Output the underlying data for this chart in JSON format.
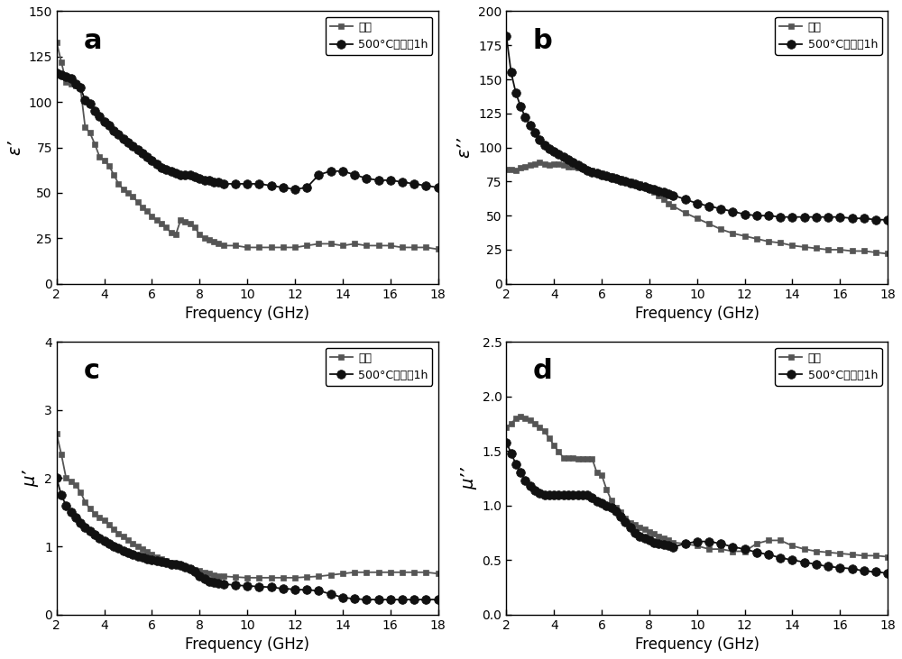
{
  "panel_labels": [
    "a",
    "b",
    "c",
    "d"
  ],
  "legend_room_temp": "室温",
  "legend_500": "500°C热处理1h",
  "xlabel": "Frequency (GHz)",
  "ylabel_a": "ε’",
  "ylabel_b": "ε’’",
  "ylabel_c": "μ’",
  "ylabel_d": "μ’’",
  "color_room": "#555555",
  "color_500": "#111111",
  "xlim": [
    2,
    18
  ],
  "ylim_a": [
    0,
    150
  ],
  "ylim_b": [
    0,
    200
  ],
  "ylim_c": [
    0,
    4
  ],
  "ylim_d": [
    0.0,
    2.5
  ],
  "xticks": [
    2,
    4,
    6,
    8,
    10,
    12,
    14,
    16,
    18
  ],
  "yticks_a": [
    0,
    25,
    50,
    75,
    100,
    125,
    150
  ],
  "yticks_b": [
    0,
    25,
    50,
    75,
    100,
    125,
    150,
    175,
    200
  ],
  "yticks_c": [
    0,
    1,
    2,
    3,
    4
  ],
  "yticks_d": [
    0.0,
    0.5,
    1.0,
    1.5,
    2.0,
    2.5
  ],
  "freq_a_room": [
    2.0,
    2.2,
    2.4,
    2.6,
    2.8,
    3.0,
    3.2,
    3.4,
    3.6,
    3.8,
    4.0,
    4.2,
    4.4,
    4.6,
    4.8,
    5.0,
    5.2,
    5.4,
    5.6,
    5.8,
    6.0,
    6.2,
    6.4,
    6.6,
    6.8,
    7.0,
    7.2,
    7.4,
    7.6,
    7.8,
    8.0,
    8.2,
    8.4,
    8.6,
    8.8,
    9.0,
    9.5,
    10.0,
    10.5,
    11.0,
    11.5,
    12.0,
    12.5,
    13.0,
    13.5,
    14.0,
    14.5,
    15.0,
    15.5,
    16.0,
    16.5,
    17.0,
    17.5,
    18.0
  ],
  "val_a_room": [
    133,
    122,
    111,
    110,
    109,
    108,
    86,
    83,
    77,
    70,
    68,
    65,
    60,
    55,
    52,
    50,
    48,
    45,
    42,
    40,
    37,
    35,
    33,
    31,
    28,
    27,
    35,
    34,
    33,
    31,
    27,
    25,
    24,
    23,
    22,
    21,
    21,
    20,
    20,
    20,
    20,
    20,
    21,
    22,
    22,
    21,
    22,
    21,
    21,
    21,
    20,
    20,
    20,
    19
  ],
  "freq_a_500": [
    2.0,
    2.2,
    2.4,
    2.6,
    2.8,
    3.0,
    3.2,
    3.4,
    3.6,
    3.8,
    4.0,
    4.2,
    4.4,
    4.6,
    4.8,
    5.0,
    5.2,
    5.4,
    5.6,
    5.8,
    6.0,
    6.2,
    6.4,
    6.6,
    6.8,
    7.0,
    7.2,
    7.4,
    7.6,
    7.8,
    8.0,
    8.2,
    8.4,
    8.6,
    8.8,
    9.0,
    9.5,
    10.0,
    10.5,
    11.0,
    11.5,
    12.0,
    12.5,
    13.0,
    13.5,
    14.0,
    14.5,
    15.0,
    15.5,
    16.0,
    16.5,
    17.0,
    17.5,
    18.0
  ],
  "val_a_500": [
    116,
    115,
    114,
    113,
    110,
    108,
    101,
    99,
    95,
    92,
    89,
    87,
    84,
    82,
    80,
    78,
    76,
    74,
    72,
    70,
    68,
    66,
    64,
    63,
    62,
    61,
    60,
    60,
    60,
    59,
    58,
    57,
    57,
    56,
    56,
    55,
    55,
    55,
    55,
    54,
    53,
    52,
    53,
    60,
    62,
    62,
    60,
    58,
    57,
    57,
    56,
    55,
    54,
    53
  ],
  "freq_b_room": [
    2.0,
    2.2,
    2.4,
    2.6,
    2.8,
    3.0,
    3.2,
    3.4,
    3.6,
    3.8,
    4.0,
    4.2,
    4.4,
    4.6,
    4.8,
    5.0,
    5.2,
    5.4,
    5.6,
    5.8,
    6.0,
    6.2,
    6.4,
    6.6,
    6.8,
    7.0,
    7.2,
    7.4,
    7.6,
    7.8,
    8.0,
    8.2,
    8.4,
    8.6,
    8.8,
    9.0,
    9.5,
    10.0,
    10.5,
    11.0,
    11.5,
    12.0,
    12.5,
    13.0,
    13.5,
    14.0,
    14.5,
    15.0,
    15.5,
    16.0,
    16.5,
    17.0,
    17.5,
    18.0
  ],
  "val_b_room": [
    84,
    84,
    83,
    85,
    86,
    87,
    88,
    89,
    88,
    87,
    88,
    88,
    87,
    86,
    86,
    85,
    85,
    84,
    83,
    82,
    81,
    80,
    79,
    78,
    77,
    76,
    75,
    74,
    73,
    71,
    69,
    67,
    65,
    62,
    59,
    57,
    52,
    48,
    44,
    40,
    37,
    35,
    33,
    31,
    30,
    28,
    27,
    26,
    25,
    25,
    24,
    24,
    23,
    22
  ],
  "freq_b_500": [
    2.0,
    2.2,
    2.4,
    2.6,
    2.8,
    3.0,
    3.2,
    3.4,
    3.6,
    3.8,
    4.0,
    4.2,
    4.4,
    4.6,
    4.8,
    5.0,
    5.2,
    5.4,
    5.6,
    5.8,
    6.0,
    6.2,
    6.4,
    6.6,
    6.8,
    7.0,
    7.2,
    7.4,
    7.6,
    7.8,
    8.0,
    8.2,
    8.4,
    8.6,
    8.8,
    9.0,
    9.5,
    10.0,
    10.5,
    11.0,
    11.5,
    12.0,
    12.5,
    13.0,
    13.5,
    14.0,
    14.5,
    15.0,
    15.5,
    16.0,
    16.5,
    17.0,
    17.5,
    18.0
  ],
  "val_b_500": [
    182,
    155,
    140,
    130,
    122,
    116,
    111,
    106,
    102,
    99,
    97,
    95,
    93,
    91,
    89,
    87,
    85,
    83,
    82,
    81,
    80,
    79,
    78,
    77,
    76,
    75,
    74,
    73,
    72,
    71,
    70,
    69,
    68,
    67,
    66,
    65,
    62,
    59,
    57,
    55,
    53,
    51,
    50,
    50,
    49,
    49,
    49,
    49,
    49,
    49,
    48,
    48,
    47,
    47
  ],
  "freq_c_room": [
    2.0,
    2.2,
    2.4,
    2.6,
    2.8,
    3.0,
    3.2,
    3.4,
    3.6,
    3.8,
    4.0,
    4.2,
    4.4,
    4.6,
    4.8,
    5.0,
    5.2,
    5.4,
    5.6,
    5.8,
    6.0,
    6.2,
    6.4,
    6.6,
    6.8,
    7.0,
    7.2,
    7.4,
    7.6,
    7.8,
    8.0,
    8.2,
    8.4,
    8.6,
    8.8,
    9.0,
    9.5,
    10.0,
    10.5,
    11.0,
    11.5,
    12.0,
    12.5,
    13.0,
    13.5,
    14.0,
    14.5,
    15.0,
    15.5,
    16.0,
    16.5,
    17.0,
    17.5,
    18.0
  ],
  "val_c_room": [
    2.65,
    2.35,
    2.0,
    1.95,
    1.9,
    1.8,
    1.65,
    1.55,
    1.48,
    1.42,
    1.38,
    1.32,
    1.25,
    1.19,
    1.14,
    1.09,
    1.04,
    1.0,
    0.96,
    0.92,
    0.88,
    0.84,
    0.81,
    0.79,
    0.76,
    0.74,
    0.72,
    0.7,
    0.68,
    0.66,
    0.64,
    0.62,
    0.6,
    0.58,
    0.57,
    0.56,
    0.55,
    0.54,
    0.54,
    0.54,
    0.54,
    0.54,
    0.55,
    0.56,
    0.58,
    0.6,
    0.62,
    0.62,
    0.62,
    0.62,
    0.62,
    0.62,
    0.62,
    0.6
  ],
  "freq_c_500": [
    2.0,
    2.2,
    2.4,
    2.6,
    2.8,
    3.0,
    3.2,
    3.4,
    3.6,
    3.8,
    4.0,
    4.2,
    4.4,
    4.6,
    4.8,
    5.0,
    5.2,
    5.4,
    5.6,
    5.8,
    6.0,
    6.2,
    6.4,
    6.6,
    6.8,
    7.0,
    7.2,
    7.4,
    7.6,
    7.8,
    8.0,
    8.2,
    8.4,
    8.6,
    8.8,
    9.0,
    9.5,
    10.0,
    10.5,
    11.0,
    11.5,
    12.0,
    12.5,
    13.0,
    13.5,
    14.0,
    14.5,
    15.0,
    15.5,
    16.0,
    16.5,
    17.0,
    17.5,
    18.0
  ],
  "val_c_500": [
    2.0,
    1.75,
    1.6,
    1.5,
    1.42,
    1.35,
    1.28,
    1.22,
    1.17,
    1.12,
    1.08,
    1.04,
    1.0,
    0.97,
    0.94,
    0.91,
    0.88,
    0.86,
    0.84,
    0.82,
    0.8,
    0.79,
    0.77,
    0.76,
    0.74,
    0.73,
    0.72,
    0.7,
    0.67,
    0.63,
    0.57,
    0.52,
    0.49,
    0.47,
    0.46,
    0.45,
    0.43,
    0.42,
    0.41,
    0.4,
    0.38,
    0.37,
    0.36,
    0.35,
    0.3,
    0.25,
    0.23,
    0.22,
    0.22,
    0.22,
    0.22,
    0.22,
    0.22,
    0.22
  ],
  "freq_d_room": [
    2.0,
    2.2,
    2.4,
    2.6,
    2.8,
    3.0,
    3.2,
    3.4,
    3.6,
    3.8,
    4.0,
    4.2,
    4.4,
    4.6,
    4.8,
    5.0,
    5.2,
    5.4,
    5.6,
    5.8,
    6.0,
    6.2,
    6.4,
    6.6,
    6.8,
    7.0,
    7.2,
    7.4,
    7.6,
    7.8,
    8.0,
    8.2,
    8.4,
    8.6,
    8.8,
    9.0,
    9.5,
    10.0,
    10.5,
    11.0,
    11.5,
    12.0,
    12.5,
    13.0,
    13.5,
    14.0,
    14.5,
    15.0,
    15.5,
    16.0,
    16.5,
    17.0,
    17.5,
    18.0
  ],
  "val_d_room": [
    1.72,
    1.75,
    1.8,
    1.82,
    1.8,
    1.78,
    1.75,
    1.72,
    1.68,
    1.62,
    1.55,
    1.49,
    1.44,
    1.44,
    1.44,
    1.43,
    1.43,
    1.43,
    1.43,
    1.3,
    1.28,
    1.15,
    1.05,
    0.98,
    0.94,
    0.88,
    0.84,
    0.82,
    0.8,
    0.78,
    0.76,
    0.74,
    0.72,
    0.7,
    0.68,
    0.66,
    0.65,
    0.63,
    0.6,
    0.6,
    0.58,
    0.58,
    0.65,
    0.68,
    0.68,
    0.63,
    0.6,
    0.58,
    0.57,
    0.56,
    0.55,
    0.54,
    0.54,
    0.53
  ],
  "freq_d_500": [
    2.0,
    2.2,
    2.4,
    2.6,
    2.8,
    3.0,
    3.2,
    3.4,
    3.6,
    3.8,
    4.0,
    4.2,
    4.4,
    4.6,
    4.8,
    5.0,
    5.2,
    5.4,
    5.6,
    5.8,
    6.0,
    6.2,
    6.4,
    6.6,
    6.8,
    7.0,
    7.2,
    7.4,
    7.6,
    7.8,
    8.0,
    8.2,
    8.4,
    8.6,
    8.8,
    9.0,
    9.5,
    10.0,
    10.5,
    11.0,
    11.5,
    12.0,
    12.5,
    13.0,
    13.5,
    14.0,
    14.5,
    15.0,
    15.5,
    16.0,
    16.5,
    17.0,
    17.5,
    18.0
  ],
  "val_d_500": [
    1.58,
    1.48,
    1.38,
    1.3,
    1.23,
    1.18,
    1.14,
    1.11,
    1.1,
    1.1,
    1.1,
    1.1,
    1.1,
    1.1,
    1.1,
    1.1,
    1.1,
    1.1,
    1.07,
    1.04,
    1.02,
    1.0,
    0.98,
    0.95,
    0.9,
    0.85,
    0.8,
    0.75,
    0.72,
    0.7,
    0.68,
    0.66,
    0.65,
    0.64,
    0.63,
    0.62,
    0.65,
    0.67,
    0.67,
    0.65,
    0.62,
    0.6,
    0.57,
    0.55,
    0.52,
    0.5,
    0.48,
    0.46,
    0.44,
    0.43,
    0.42,
    0.4,
    0.39,
    0.38
  ]
}
